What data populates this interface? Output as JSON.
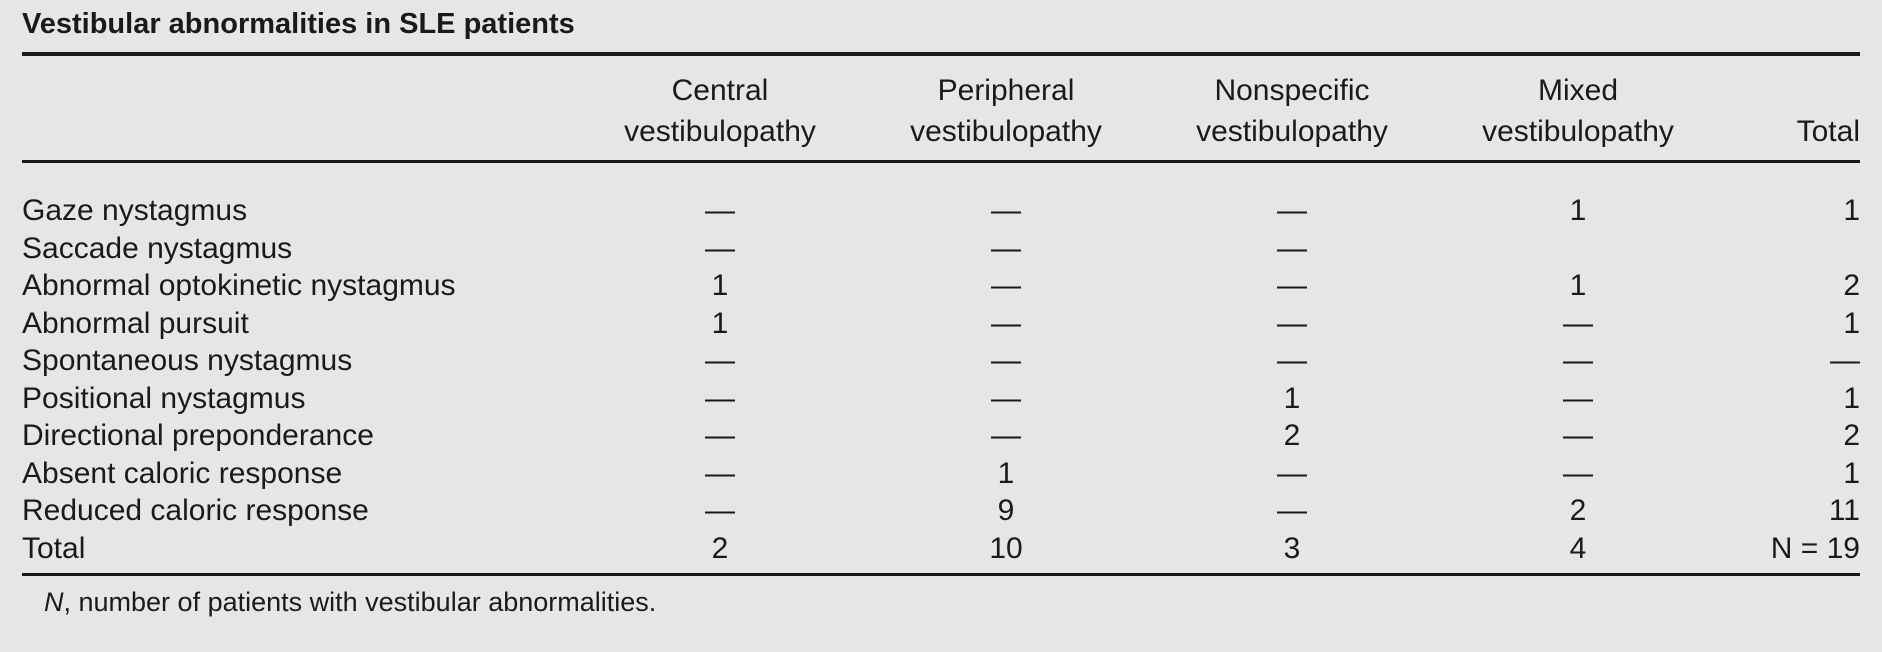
{
  "table": {
    "title": "Vestibular abnormalities in SLE patients",
    "columns": [
      "Central\nvestibulopathy",
      "Peripheral\nvestibulopathy",
      "Nonspecific\nvestibulopathy",
      "Mixed\nvestibulopathy",
      "Total"
    ],
    "rows": [
      {
        "label": "Gaze nystagmus",
        "values": [
          "—",
          "—",
          "—",
          "1",
          "1"
        ]
      },
      {
        "label": "Saccade nystagmus",
        "values": [
          "—",
          "—",
          "—",
          "",
          ""
        ]
      },
      {
        "label": "Abnormal optokinetic nystagmus",
        "values": [
          "1",
          "—",
          "—",
          "1",
          "2"
        ]
      },
      {
        "label": "Abnormal pursuit",
        "values": [
          "1",
          "—",
          "—",
          "—",
          "1"
        ]
      },
      {
        "label": "Spontaneous nystagmus",
        "values": [
          "—",
          "—",
          "—",
          "—",
          "—"
        ]
      },
      {
        "label": "Positional nystagmus",
        "values": [
          "—",
          "—",
          "1",
          "—",
          "1"
        ]
      },
      {
        "label": "Directional preponderance",
        "values": [
          "—",
          "—",
          "2",
          "—",
          "2"
        ]
      },
      {
        "label": "Absent caloric response",
        "values": [
          "—",
          "1",
          "—",
          "—",
          "1"
        ]
      },
      {
        "label": "Reduced caloric response",
        "values": [
          "—",
          "9",
          "—",
          "2",
          "11"
        ]
      },
      {
        "label": "Total",
        "values": [
          "2",
          "10",
          "3",
          "4",
          "N = 19"
        ]
      }
    ],
    "footnote_symbol": "N",
    "footnote_text": ", number of patients with vestibular abnormalities."
  }
}
